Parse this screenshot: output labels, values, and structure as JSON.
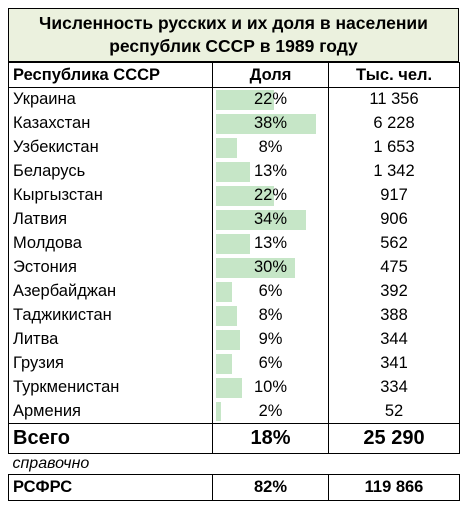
{
  "title": "Численность русских и их доля в населении республик СССР в 1989 году",
  "headers": {
    "republic": "Республика СССР",
    "share": "Доля",
    "pop": "Тыс. чел."
  },
  "bar_color": "#c6e6c7",
  "header_bg": "#ebf1de",
  "rows": [
    {
      "republic": "Украина",
      "share": "22%",
      "share_value": 22,
      "pop": "11 356"
    },
    {
      "republic": "Казахстан",
      "share": "38%",
      "share_value": 38,
      "pop": "6 228"
    },
    {
      "republic": "Узбекистан",
      "share": "8%",
      "share_value": 8,
      "pop": "1 653"
    },
    {
      "republic": "Беларусь",
      "share": "13%",
      "share_value": 13,
      "pop": "1 342"
    },
    {
      "republic": "Кыргызстан",
      "share": "22%",
      "share_value": 22,
      "pop": "917"
    },
    {
      "republic": "Латвия",
      "share": "34%",
      "share_value": 34,
      "pop": "906"
    },
    {
      "republic": "Молдова",
      "share": "13%",
      "share_value": 13,
      "pop": "562"
    },
    {
      "republic": "Эстония",
      "share": "30%",
      "share_value": 30,
      "pop": "475"
    },
    {
      "republic": "Азербайджан",
      "share": "6%",
      "share_value": 6,
      "pop": "392"
    },
    {
      "republic": "Таджикистан",
      "share": "8%",
      "share_value": 8,
      "pop": "388"
    },
    {
      "republic": "Литва",
      "share": "9%",
      "share_value": 9,
      "pop": "344"
    },
    {
      "republic": "Грузия",
      "share": "6%",
      "share_value": 6,
      "pop": "341"
    },
    {
      "republic": "Туркменистан",
      "share": "10%",
      "share_value": 10,
      "pop": "334"
    },
    {
      "republic": "Армения",
      "share": "2%",
      "share_value": 2,
      "pop": "52"
    }
  ],
  "total": {
    "label": "Всего",
    "share": "18%",
    "pop": "25 290"
  },
  "reference_label": "справочно",
  "rsfsr": {
    "label": "РСФРС",
    "share": "82%",
    "pop": "119 866"
  }
}
